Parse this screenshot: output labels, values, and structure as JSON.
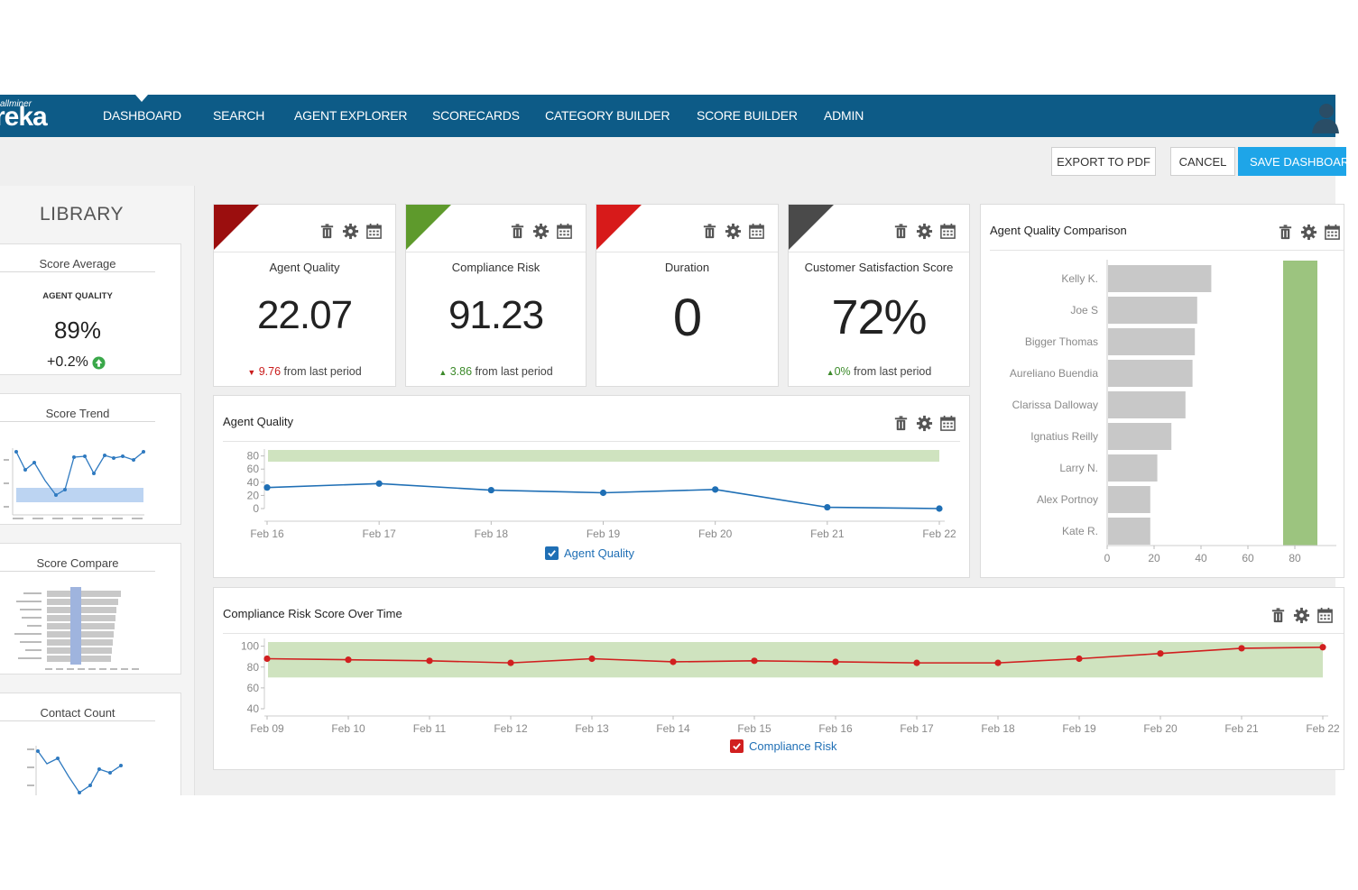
{
  "brand": {
    "small": "allminer",
    "big": "reka"
  },
  "nav": {
    "items": [
      "DASHBOARD",
      "SEARCH",
      "AGENT EXPLORER",
      "SCORECARDS",
      "CATEGORY BUILDER",
      "SCORE BUILDER",
      "ADMIN"
    ]
  },
  "actions": {
    "export": "EXPORT TO PDF",
    "cancel": "CANCEL",
    "save": "SAVE DASHBOARD"
  },
  "library": {
    "title": "LIBRARY",
    "score_average": {
      "title": "Score Average",
      "subtitle": "AGENT QUALITY",
      "value": "89%",
      "delta": "+0.2%"
    },
    "score_trend": {
      "title": "Score Trend"
    },
    "score_compare": {
      "title": "Score Compare"
    },
    "contact_count": {
      "title": "Contact Count"
    }
  },
  "kpis": [
    {
      "title": "Agent Quality",
      "value": "22.07",
      "direction": "down",
      "delta": "9.76",
      "delta_suffix": " from last period",
      "color": "#9b0e0e"
    },
    {
      "title": "Compliance Risk",
      "value": "91.23",
      "direction": "up",
      "delta": "3.86",
      "delta_suffix": " from last period",
      "color": "#5e9a2c"
    },
    {
      "title": "Duration",
      "value": "0",
      "direction": "",
      "delta": "",
      "delta_suffix": "",
      "color": "#d71a1a"
    },
    {
      "title": "Customer Satisfaction Score",
      "value": "72%",
      "direction": "up",
      "delta": "0%",
      "delta_suffix": " from last period",
      "color": "#4a4a4a"
    }
  ],
  "colors": {
    "nav": "#0d5b87",
    "primary": "#1ea5e8",
    "aq_line": "#1f6fb5",
    "cr_line": "#d11f1f",
    "band": "#cfe3bf",
    "bar": "#c8c8c8",
    "bar_highlight": "#9cc47f"
  },
  "icons": [
    "trash-icon",
    "gear-icon",
    "calendar-icon",
    "check-icon",
    "user-icon",
    "arrow-up-circle-icon"
  ],
  "chart_data": [
    {
      "id": "agent_quality",
      "type": "line",
      "title": "Agent Quality",
      "x": [
        "Feb 16",
        "Feb 17",
        "Feb 18",
        "Feb 19",
        "Feb 20",
        "Feb 21",
        "Feb 22"
      ],
      "series": [
        {
          "name": "Agent Quality",
          "values": [
            32,
            38,
            28,
            24,
            29,
            2,
            0
          ]
        }
      ],
      "yticks": [
        0,
        20,
        40,
        60,
        80
      ],
      "ylim": [
        0,
        85
      ],
      "band": [
        80,
        100
      ],
      "legend": "bottom"
    },
    {
      "id": "agent_quality_comparison",
      "type": "bar",
      "title": "Agent Quality Comparison",
      "orientation": "horizontal",
      "categories": [
        "Kelly K.",
        "Joe S",
        "Bigger Thomas",
        "Aureliano Buendia",
        "Clarissa Dalloway",
        "Ignatius Reilly",
        "Larry N.",
        "Alex Portnoy",
        "Kate R."
      ],
      "values": [
        44,
        38,
        37,
        36,
        33,
        27,
        21,
        18,
        18
      ],
      "target": 80,
      "xticks": [
        0,
        20,
        40,
        60,
        80
      ],
      "xlim": [
        0,
        90
      ]
    },
    {
      "id": "compliance_risk",
      "type": "line",
      "title": "Compliance Risk Score Over Time",
      "x": [
        "Feb 09",
        "Feb 10",
        "Feb 11",
        "Feb 12",
        "Feb 13",
        "Feb 14",
        "Feb 15",
        "Feb 16",
        "Feb 17",
        "Feb 18",
        "Feb 19",
        "Feb 20",
        "Feb 21",
        "Feb 22"
      ],
      "series": [
        {
          "name": "Compliance Risk",
          "values": [
            88,
            87,
            86,
            84,
            88,
            85,
            86,
            85,
            84,
            84,
            88,
            93,
            98,
            99
          ]
        }
      ],
      "yticks": [
        40,
        60,
        80,
        100
      ],
      "ylim": [
        40,
        104
      ],
      "band": [
        70,
        104
      ],
      "legend": "bottom"
    }
  ]
}
